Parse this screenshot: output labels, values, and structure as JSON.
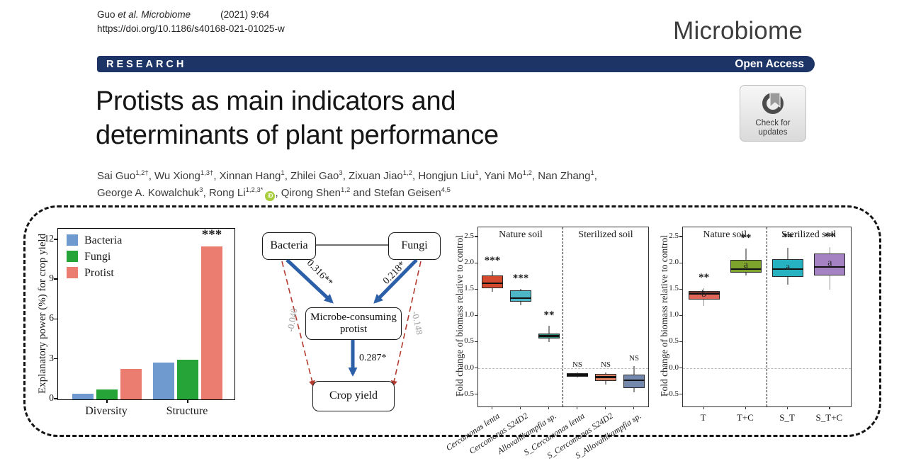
{
  "header": {
    "citation_plain": "Guo ",
    "citation_italic": "et al. Microbiome",
    "citation_issue": "(2021) 9:64",
    "doi": "https://doi.org/10.1186/s40168-021-01025-w",
    "journal": "Microbiome",
    "section": "RESEARCH",
    "access": "Open Access",
    "check_updates_line1": "Check for",
    "check_updates_line2": "updates",
    "band_color": "#1c3566",
    "orcid_color": "#a6ce39"
  },
  "article": {
    "title_line1": "Protists as main indicators and",
    "title_line2": "determinants of plant performance",
    "authors_line1": [
      {
        "name": "Sai Guo",
        "sup": "1,2†",
        "sep": ", "
      },
      {
        "name": "Wu Xiong",
        "sup": "1,3†",
        "sep": ", "
      },
      {
        "name": "Xinnan Hang",
        "sup": "1",
        "sep": ", "
      },
      {
        "name": "Zhilei Gao",
        "sup": "3",
        "sep": ", "
      },
      {
        "name": "Zixuan Jiao",
        "sup": "1,2",
        "sep": ", "
      },
      {
        "name": "Hongjun Liu",
        "sup": "1",
        "sep": ", "
      },
      {
        "name": "Yani Mo",
        "sup": "1,2",
        "sep": ", "
      },
      {
        "name": "Nan Zhang",
        "sup": "1",
        "sep": ","
      }
    ],
    "authors_line2": [
      {
        "name": "George A. Kowalchuk",
        "sup": "3",
        "sep": ", "
      },
      {
        "name": "Rong Li",
        "sup": "1,2,3*",
        "orcid": true,
        "sep": ", "
      },
      {
        "name": "Qirong Shen",
        "sup": "1,2",
        "sep": " and "
      },
      {
        "name": "Stefan Geisen",
        "sup": "4,5",
        "sep": ""
      }
    ]
  },
  "diagram": {
    "nodes": [
      {
        "id": "bacteria",
        "label": "Bacteria"
      },
      {
        "id": "fungi",
        "label": "Fungi"
      },
      {
        "id": "protist",
        "label": "Microbe-consuming protist"
      },
      {
        "id": "yield",
        "label": "Crop yield"
      }
    ],
    "edges": [
      {
        "from": "Bacteria",
        "to": "Microbe-consuming protist",
        "label": "0.316**",
        "style": "solid-blue"
      },
      {
        "from": "Fungi",
        "to": "Microbe-consuming protist",
        "label": "0.218*",
        "style": "solid-blue"
      },
      {
        "from": "Microbe-consuming protist",
        "to": "Crop yield",
        "label": "0.287*",
        "style": "solid-blue"
      },
      {
        "from": "Bacteria",
        "to": "Crop yield",
        "label": "-0.040",
        "style": "dashed-red"
      },
      {
        "from": "Fungi",
        "to": "Crop yield",
        "label": "-0.148",
        "style": "dashed-red"
      },
      {
        "from": "Bacteria",
        "to": "Fungi",
        "label": "",
        "style": "plain-line"
      }
    ],
    "arrow_blue": "#2b5fa7",
    "arrow_red": "#b23a2f"
  },
  "chart_data": [
    {
      "id": "explanatory-power-bars",
      "type": "bar",
      "ylabel": "Explanatory power (%) for crop yield",
      "categories": [
        "Diversity",
        "Structure"
      ],
      "series": [
        {
          "name": "Bacteria",
          "color": "#6f9ad0",
          "values": [
            0.42,
            2.78
          ]
        },
        {
          "name": "Fungi",
          "color": "#27a437",
          "values": [
            0.75,
            3.0
          ]
        },
        {
          "name": "Protist",
          "color": "#ea7c70",
          "values": [
            2.3,
            11.5
          ]
        }
      ],
      "yticks": [
        0,
        3,
        6,
        9,
        12
      ],
      "ylim": [
        0,
        12.85
      ],
      "annotation": "***",
      "annotation_target": "Structure Protist",
      "legend_position": "top-left",
      "grid": false
    },
    {
      "id": "protist-inoculation-boxplot",
      "type": "boxplot",
      "ylabel": "Fold change of biomass relative to control",
      "section_labels": [
        "Nature soil",
        "Sterilized soil"
      ],
      "yticks": [
        2.5,
        2.0,
        1.5,
        1.0,
        0.5,
        0.0,
        -0.5
      ],
      "ylim": [
        -0.72,
        2.69
      ],
      "zero_line": 0.0,
      "boxes": [
        {
          "label": "Cercomonas lenta",
          "color": "#d34a2e",
          "whisker_low": 1.46,
          "q1": 1.53,
          "median": 1.62,
          "q3": 1.77,
          "whisker_high": 1.86,
          "sig": "***"
        },
        {
          "label": "Cercomonas S24D2",
          "color": "#4cb5c6",
          "whisker_low": 1.21,
          "q1": 1.28,
          "median": 1.34,
          "q3": 1.49,
          "whisker_high": 1.52,
          "sig": "***"
        },
        {
          "label": "Allovahlkampfia sp.",
          "color": "#2f8e7b",
          "whisker_low": 0.51,
          "q1": 0.57,
          "median": 0.62,
          "q3": 0.67,
          "whisker_high": 0.81,
          "sig": "**"
        },
        {
          "label": "S_Cercomonas lenta",
          "color": "#2d4a74",
          "whisker_low": -0.17,
          "q1": -0.16,
          "median": -0.12,
          "q3": -0.08,
          "whisker_high": -0.07,
          "sig": "NS"
        },
        {
          "label": "S_Cercomonas S24D2",
          "color": "#de8062",
          "whisker_low": -0.3,
          "q1": -0.23,
          "median": -0.16,
          "q3": -0.1,
          "whisker_high": -0.07,
          "sig": "NS"
        },
        {
          "label": "S_Allovahlkampfia sp.",
          "color": "#7487ac",
          "whisker_low": -0.45,
          "q1": -0.37,
          "median": -0.22,
          "q3": -0.11,
          "whisker_high": 0.05,
          "sig": "NS"
        }
      ]
    },
    {
      "id": "treatment-boxplot",
      "type": "boxplot",
      "ylabel": "Fold change of biomass relative to control",
      "section_labels": [
        "Nature soil",
        "Sterilized soil"
      ],
      "yticks": [
        2.5,
        2.0,
        1.5,
        1.0,
        0.5,
        0.0,
        -0.5
      ],
      "ylim": [
        -0.72,
        2.69
      ],
      "zero_line": 0.0,
      "boxes": [
        {
          "label": "T",
          "color": "#e2655a",
          "whisker_low": 1.2,
          "q1": 1.31,
          "median": 1.43,
          "q3": 1.48,
          "whisker_high": 1.53,
          "sig": "**",
          "letter": "b"
        },
        {
          "label": "T+C",
          "color": "#7ea32c",
          "whisker_low": 1.78,
          "q1": 1.83,
          "median": 1.9,
          "q3": 2.07,
          "whisker_high": 2.28,
          "sig": "**",
          "letter": "a"
        },
        {
          "label": "S_T",
          "color": "#27b2c1",
          "whisker_low": 1.6,
          "q1": 1.74,
          "median": 1.9,
          "q3": 2.08,
          "whisker_high": 2.3,
          "sig": "**",
          "letter": "a"
        },
        {
          "label": "S_T+C",
          "color": "#a583c3",
          "whisker_low": 1.5,
          "q1": 1.78,
          "median": 1.93,
          "q3": 2.19,
          "whisker_high": 2.31,
          "sig": "**",
          "letter": "a"
        }
      ]
    }
  ]
}
